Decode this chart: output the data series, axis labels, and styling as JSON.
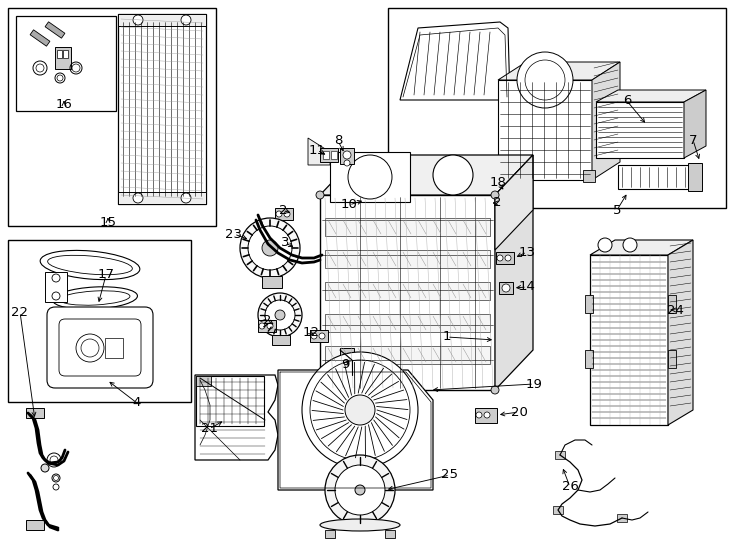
{
  "background_color": "#ffffff",
  "figsize": [
    7.34,
    5.4
  ],
  "dpi": 100,
  "labels": [
    [
      "1",
      447,
      337
    ],
    [
      "2",
      286,
      213
    ],
    [
      "2",
      497,
      206
    ],
    [
      "2",
      270,
      323
    ],
    [
      "3",
      288,
      246
    ],
    [
      "4",
      137,
      403
    ],
    [
      "5",
      617,
      212
    ],
    [
      "6",
      630,
      104
    ],
    [
      "7",
      695,
      143
    ],
    [
      "8",
      341,
      144
    ],
    [
      "9",
      348,
      368
    ],
    [
      "10",
      352,
      208
    ],
    [
      "11",
      320,
      153
    ],
    [
      "12",
      314,
      336
    ],
    [
      "13",
      530,
      255
    ],
    [
      "14",
      530,
      290
    ],
    [
      "15",
      108,
      224
    ],
    [
      "16",
      67,
      108
    ],
    [
      "17",
      109,
      278
    ],
    [
      "18",
      501,
      185
    ],
    [
      "19",
      537,
      387
    ],
    [
      "20",
      522,
      415
    ],
    [
      "21",
      212,
      432
    ],
    [
      "22",
      23,
      315
    ],
    [
      "23",
      237,
      237
    ],
    [
      "24",
      678,
      313
    ],
    [
      "25",
      453,
      478
    ],
    [
      "26",
      573,
      490
    ]
  ]
}
